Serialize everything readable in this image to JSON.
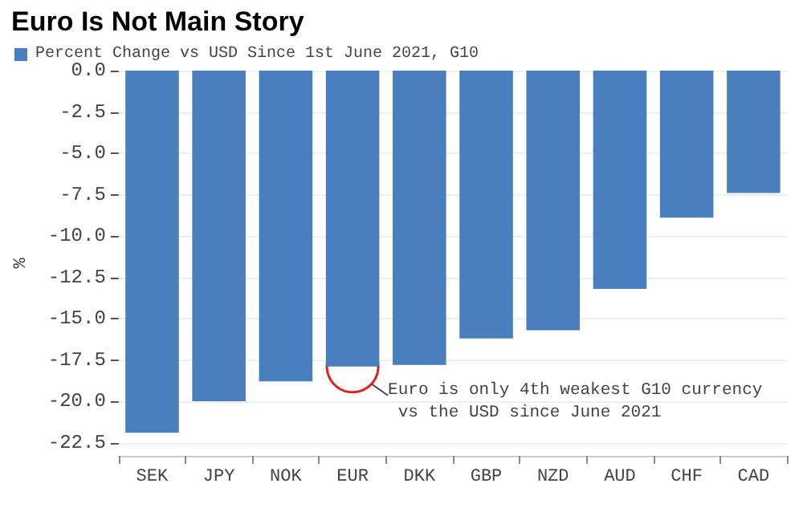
{
  "chart_data": {
    "type": "bar",
    "title": "Euro Is Not Main Story",
    "ylabel": "%",
    "categories": [
      "SEK",
      "JPY",
      "NOK",
      "EUR",
      "DKK",
      "GBP",
      "NZD",
      "AUD",
      "CHF",
      "CAD"
    ],
    "series": [
      {
        "name": "Percent Change vs USD Since 1st June 2021, G10",
        "color": "#4a7fbd",
        "values": [
          -21.9,
          -20.0,
          -18.8,
          -17.9,
          -17.8,
          -16.2,
          -15.7,
          -13.2,
          -8.9,
          -7.4
        ]
      }
    ],
    "ylim": [
      -23.3,
      0
    ],
    "yticks": [
      {
        "value": 0,
        "label": "0.0"
      },
      -2.5,
      {
        "value": -5,
        "label": "-5.0"
      },
      -7.5,
      {
        "value": -10,
        "label": "-10.0"
      },
      -12.5,
      {
        "value": -15,
        "label": "-15.0"
      },
      -17.5,
      {
        "value": -20,
        "label": "-20.0"
      },
      -22.5
    ],
    "grid": "y",
    "legend": "top left",
    "annotations": [
      {
        "text": "Euro is only 4th weakest G10 currency vs the USD since June 2021",
        "x": "EUR",
        "y": -17.9
      }
    ]
  }
}
